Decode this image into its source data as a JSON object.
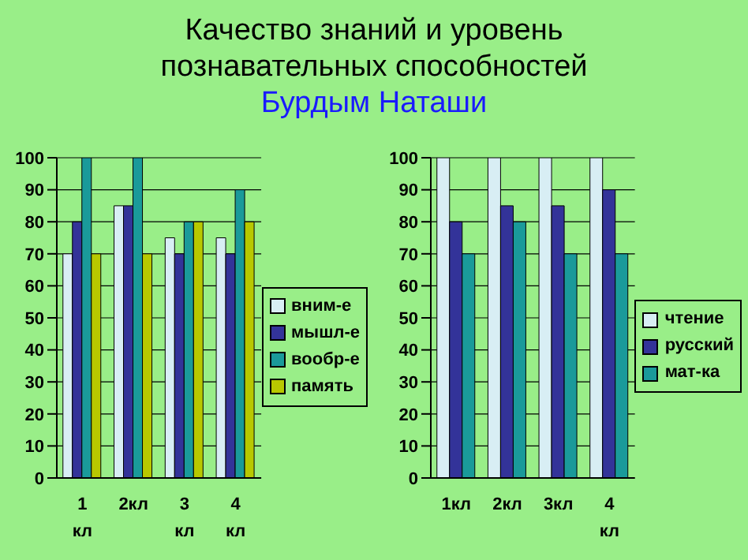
{
  "chart_data": [
    {
      "type": "bar",
      "title": "Качество знаний и уровень познавательных способностей",
      "subtitle": "Бурдым Наташи",
      "categories": [
        "1 кл",
        "2кл",
        "3 кл",
        "4 кл"
      ],
      "series": [
        {
          "name": "вним-е",
          "color": "#d8eef4",
          "values": [
            70,
            85,
            75,
            75
          ]
        },
        {
          "name": "мышл-е",
          "color": "#333399",
          "values": [
            80,
            85,
            70,
            70
          ]
        },
        {
          "name": "вообр-е",
          "color": "#1a9a9a",
          "values": [
            100,
            100,
            80,
            90
          ]
        },
        {
          "name": "память",
          "color": "#b8c800",
          "values": [
            70,
            70,
            80,
            80
          ]
        }
      ],
      "ylim": [
        0,
        100
      ],
      "yticks": [
        0,
        10,
        20,
        30,
        40,
        50,
        60,
        70,
        80,
        90,
        100
      ],
      "grid": "y",
      "legend": "right"
    },
    {
      "type": "bar",
      "categories": [
        "1кл",
        "2кл",
        "3кл",
        "4 кл"
      ],
      "series": [
        {
          "name": "чтение",
          "color": "#d8eef4",
          "values": [
            100,
            100,
            100,
            100
          ]
        },
        {
          "name": "русский",
          "color": "#333399",
          "values": [
            80,
            85,
            85,
            90
          ]
        },
        {
          "name": "мат-ка",
          "color": "#1a9a9a",
          "values": [
            70,
            80,
            70,
            70
          ]
        }
      ],
      "ylim": [
        0,
        100
      ],
      "yticks": [
        0,
        10,
        20,
        30,
        40,
        50,
        60,
        70,
        80,
        90,
        100
      ],
      "grid": "y",
      "legend": "right"
    }
  ]
}
